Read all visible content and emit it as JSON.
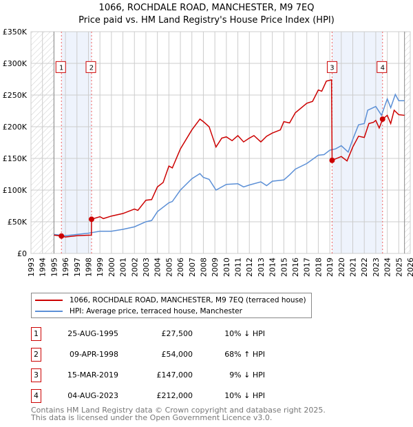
{
  "chart_data": {
    "type": "line",
    "title": "1066, ROCHDALE ROAD, MANCHESTER, M9 7EQ",
    "subtitle": "Price paid vs. HM Land Registry's House Price Index (HPI)",
    "xlim": [
      1993,
      2026
    ],
    "ylim": [
      0,
      350000
    ],
    "x_ticks": [
      "1993",
      "1994",
      "1995",
      "1996",
      "1997",
      "1998",
      "1999",
      "2000",
      "2001",
      "2002",
      "2003",
      "2004",
      "2005",
      "2006",
      "2007",
      "2008",
      "2009",
      "2010",
      "2011",
      "2012",
      "2013",
      "2014",
      "2015",
      "2016",
      "2017",
      "2018",
      "2019",
      "2020",
      "2021",
      "2022",
      "2023",
      "2024",
      "2025",
      "2026"
    ],
    "y_ticks": [
      {
        "v": 0,
        "label": "£0"
      },
      {
        "v": 50000,
        "label": "£50K"
      },
      {
        "v": 100000,
        "label": "£100K"
      },
      {
        "v": 150000,
        "label": "£150K"
      },
      {
        "v": 200000,
        "label": "£200K"
      },
      {
        "v": 250000,
        "label": "£250K"
      },
      {
        "v": 300000,
        "label": "£300K"
      },
      {
        "v": 350000,
        "label": "£350K"
      }
    ],
    "grid": true,
    "series": [
      {
        "name": "1066, ROCHDALE ROAD, MANCHESTER, M9 7EQ (terraced house)",
        "color": "#cc0000",
        "x": [
          1995,
          1995.65,
          1996,
          1997,
          1998.26,
          1998.27,
          1999,
          1999.3,
          2000,
          2001,
          2002,
          2002.3,
          2003,
          2003.5,
          2004,
          2004.5,
          2005,
          2005.3,
          2006,
          2007,
          2007.7,
          2008,
          2008.5,
          2009.1,
          2009.6,
          2010,
          2010.5,
          2011,
          2011.5,
          2012,
          2012.4,
          2013,
          2013.5,
          2014,
          2014.7,
          2015,
          2015.5,
          2016,
          2017,
          2017.5,
          2018,
          2018.3,
          2018.7,
          2019.15,
          2019.2,
          2020,
          2020.5,
          2021,
          2021.5,
          2022,
          2022.4,
          2022.8,
          2023,
          2023.3,
          2023.6,
          2024,
          2024.3,
          2024.6,
          2025,
          2025.5
        ],
        "y": [
          29000,
          27500,
          26000,
          28000,
          29000,
          54000,
          58000,
          55000,
          59000,
          63000,
          70000,
          68000,
          84000,
          85000,
          105000,
          112000,
          138000,
          135000,
          165000,
          195000,
          212000,
          208000,
          200000,
          168000,
          182000,
          184000,
          178000,
          186000,
          176000,
          182000,
          186000,
          176000,
          185000,
          190000,
          195000,
          208000,
          206000,
          222000,
          237000,
          240000,
          258000,
          256000,
          272000,
          274000,
          147000,
          153000,
          146000,
          168000,
          185000,
          183000,
          205000,
          207000,
          210000,
          198000,
          212000,
          218000,
          205000,
          226000,
          219000,
          218000
        ]
      },
      {
        "name": "HPI: Average price, terraced house, Manchester",
        "color": "#5b8fd6",
        "x": [
          1995,
          1996,
          1997,
          1998,
          1999,
          2000,
          2001,
          2002,
          2003,
          2003.5,
          2004,
          2005,
          2005.3,
          2006,
          2007,
          2007.7,
          2008,
          2008.5,
          2009.1,
          2010,
          2011,
          2011.5,
          2012,
          2013,
          2013.5,
          2014,
          2015,
          2015.5,
          2016,
          2017,
          2018,
          2018.5,
          2019,
          2019.5,
          2020,
          2020.6,
          2021,
          2021.5,
          2022,
          2022.3,
          2023,
          2023.5,
          2024,
          2024.3,
          2024.7,
          2025,
          2025.5
        ],
        "y": [
          30000,
          28000,
          30000,
          32000,
          35000,
          35000,
          38000,
          42000,
          50000,
          52000,
          66000,
          80000,
          82000,
          100000,
          118000,
          126000,
          120000,
          117000,
          100000,
          109000,
          110000,
          105000,
          108000,
          113000,
          107000,
          114000,
          116000,
          124000,
          133000,
          142000,
          155000,
          156000,
          163000,
          165000,
          170000,
          160000,
          180000,
          203000,
          205000,
          226000,
          232000,
          218000,
          244000,
          230000,
          251000,
          241000,
          241000
        ]
      }
    ],
    "sales": [
      {
        "n": "1",
        "x": 1995.65,
        "y": 27500,
        "date": "25-AUG-1995",
        "price": "£27,500",
        "hpi": "10% ↓ HPI"
      },
      {
        "n": "2",
        "x": 1998.27,
        "y": 54000,
        "date": "09-APR-1998",
        "price": "£54,000",
        "hpi": "68% ↑ HPI"
      },
      {
        "n": "3",
        "x": 2019.2,
        "y": 147000,
        "date": "15-MAR-2019",
        "price": "£147,000",
        "hpi": "9% ↓ HPI"
      },
      {
        "n": "4",
        "x": 2023.59,
        "y": 212000,
        "date": "04-AUG-2023",
        "price": "£212,000",
        "hpi": "10% ↓ HPI"
      }
    ],
    "shaded_ranges": [
      [
        1995.65,
        1998.27
      ],
      [
        2019.2,
        2023.59
      ]
    ],
    "hatched_ranges": [
      [
        1993,
        1995
      ],
      [
        2025.5,
        2026
      ]
    ]
  },
  "footer": {
    "line1": "Contains HM Land Registry data © Crown copyright and database right 2025.",
    "line2": "This data is licensed under the Open Government Licence v3.0."
  }
}
